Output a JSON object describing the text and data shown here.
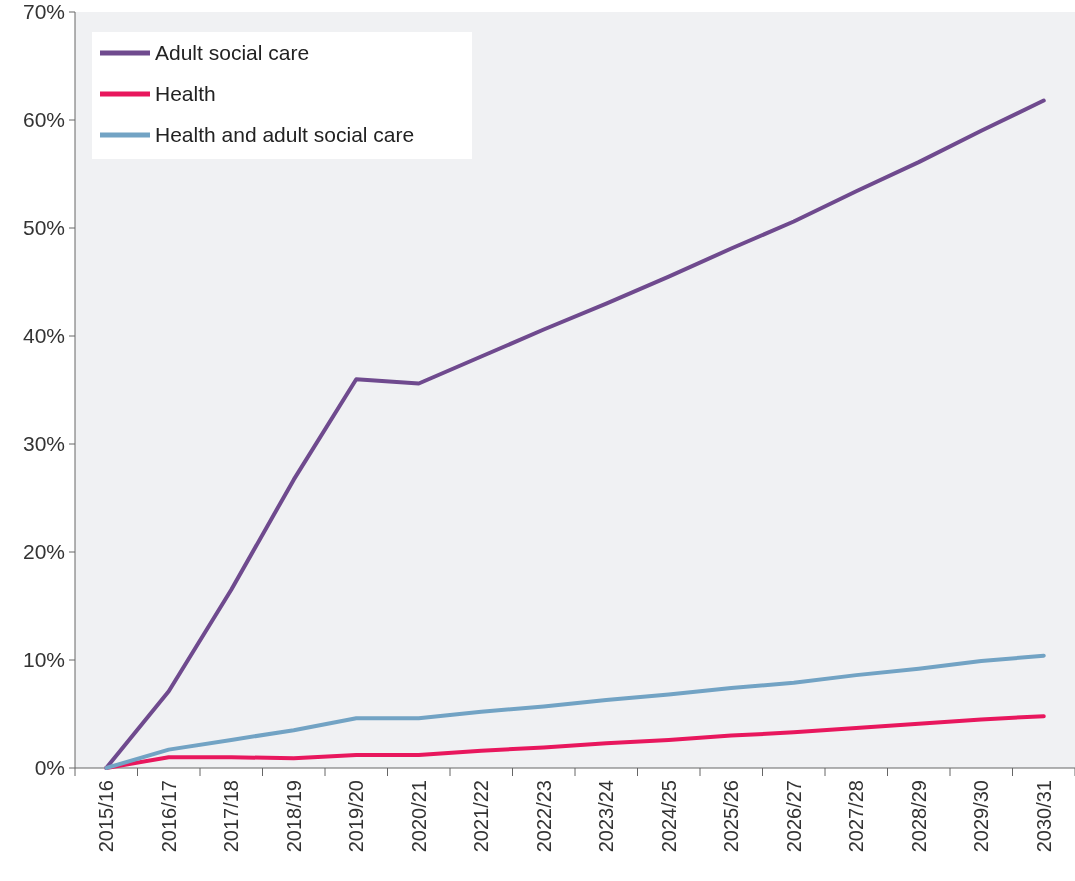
{
  "chart_data": {
    "type": "line",
    "categories": [
      "2015/16",
      "2016/17",
      "2017/18",
      "2018/19",
      "2019/20",
      "2020/21",
      "2021/22",
      "2022/23",
      "2023/24",
      "2024/25",
      "2025/26",
      "2026/27",
      "2027/28",
      "2028/29",
      "2029/30",
      "2030/31"
    ],
    "series": [
      {
        "name": "Adult social care",
        "color": "#6f4a8e",
        "values": [
          0,
          7.1,
          16.5,
          26.7,
          36.0,
          35.6,
          38.1,
          40.6,
          43.0,
          45.5,
          48.1,
          50.6,
          53.4,
          56.1,
          59.0,
          61.8
        ]
      },
      {
        "name": "Health",
        "color": "#e8175d",
        "values": [
          0,
          1.0,
          1.0,
          0.9,
          1.2,
          1.2,
          1.6,
          1.9,
          2.3,
          2.6,
          3.0,
          3.3,
          3.7,
          4.1,
          4.5,
          4.8
        ]
      },
      {
        "name": "Health and adult social care",
        "color": "#72a3c4",
        "values": [
          0,
          1.7,
          2.6,
          3.5,
          4.6,
          4.6,
          5.2,
          5.7,
          6.3,
          6.8,
          7.4,
          7.9,
          8.6,
          9.2,
          9.9,
          10.4
        ]
      }
    ],
    "ylim": [
      0,
      70
    ],
    "yticks": [
      {
        "value": 0,
        "label": "0%"
      },
      {
        "value": 10,
        "label": "10%"
      },
      {
        "value": 20,
        "label": "20%"
      },
      {
        "value": 30,
        "label": "30%"
      },
      {
        "value": 40,
        "label": "40%"
      },
      {
        "value": 50,
        "label": "50%"
      },
      {
        "value": 60,
        "label": "60%"
      },
      {
        "value": 70,
        "label": "70%"
      }
    ],
    "legend": "top left",
    "grid": false,
    "line_style": "solid"
  }
}
